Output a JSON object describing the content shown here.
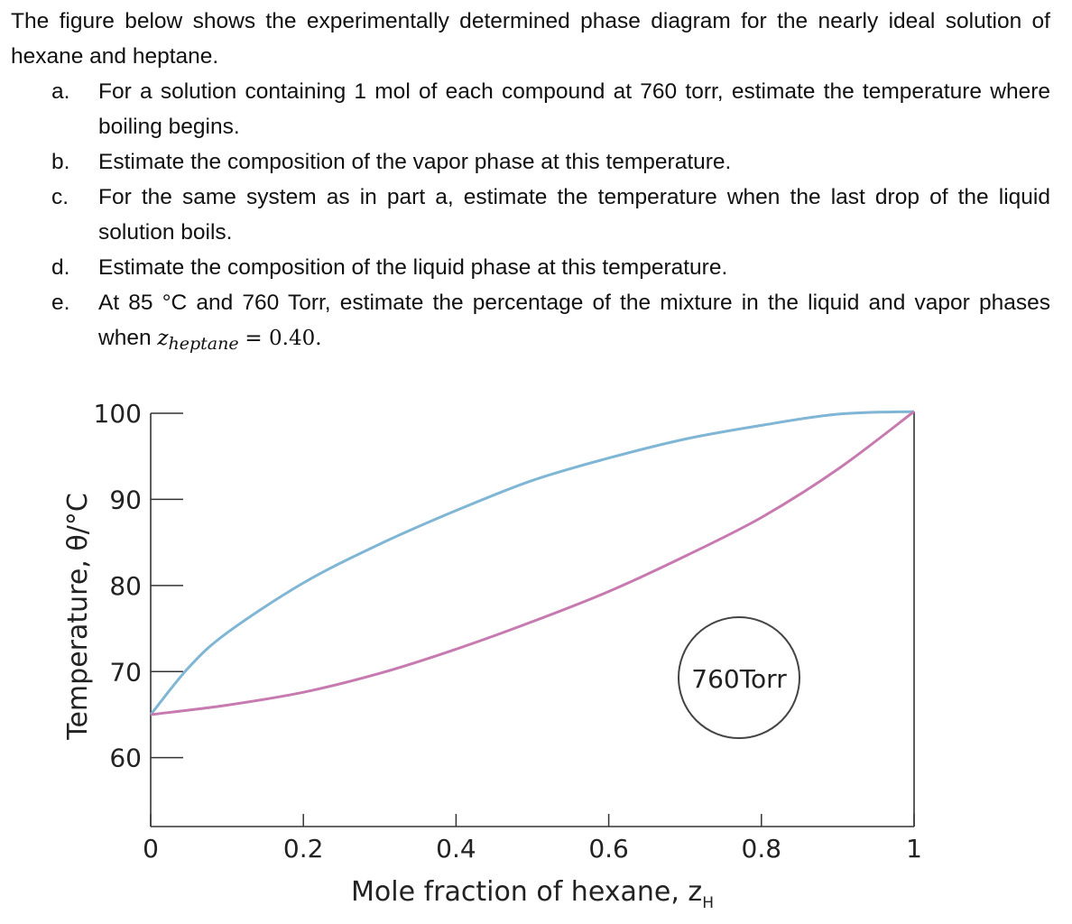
{
  "question": {
    "intro": "The figure below shows the experimentally determined phase diagram for the nearly ideal solution of hexane and heptane.",
    "items": [
      {
        "letter": "a.",
        "text": "For a solution containing 1 mol of each compound at 760 torr, estimate the temperature where boiling begins."
      },
      {
        "letter": "b.",
        "text": "Estimate the composition of the vapor phase at this temperature."
      },
      {
        "letter": "c.",
        "text": "For the same system as in part a, estimate the temperature when the last drop of the liquid solution boils."
      },
      {
        "letter": "d.",
        "text": "Estimate the composition of the liquid phase at this temperature."
      },
      {
        "letter": "e.",
        "text": "At 85 °C and 760 Torr, estimate the percentage of the mixture in the liquid and vapor phases when",
        "math_symbol": "z",
        "math_subscript": "heptane",
        "math_value": "= 0.40."
      }
    ]
  },
  "chart_data": {
    "type": "line",
    "xlabel": "Mole fraction of hexane, z",
    "xlabel_subscript": "H",
    "ylabel": "Temperature, θ/°C",
    "xlim": [
      0,
      1
    ],
    "ylim": [
      52,
      100
    ],
    "x_ticks": [
      "0",
      "0.2",
      "0.4",
      "0.6",
      "0.8",
      "1"
    ],
    "y_ticks": [
      "60",
      "70",
      "80",
      "90",
      "100"
    ],
    "annotation": "760Torr",
    "colors": {
      "upper": "#7fb5d5",
      "lower": "#c77ab0",
      "axis": "#333333"
    },
    "series": [
      {
        "curve": "upper",
        "x": [
          0,
          0.05,
          0.1,
          0.2,
          0.3,
          0.4,
          0.5,
          0.6,
          0.7,
          0.8,
          0.9,
          1.0
        ],
        "y": [
          65,
          70.5,
          74.5,
          80.3,
          84.8,
          88.7,
          92.2,
          94.8,
          97.0,
          98.6,
          99.9,
          100.2
        ]
      },
      {
        "curve": "lower",
        "x": [
          0,
          0.1,
          0.2,
          0.3,
          0.4,
          0.5,
          0.6,
          0.7,
          0.8,
          0.9,
          1.0
        ],
        "y": [
          65,
          66.1,
          67.6,
          69.8,
          72.6,
          75.8,
          79.3,
          83.4,
          87.9,
          93.5,
          100.2
        ]
      }
    ]
  }
}
